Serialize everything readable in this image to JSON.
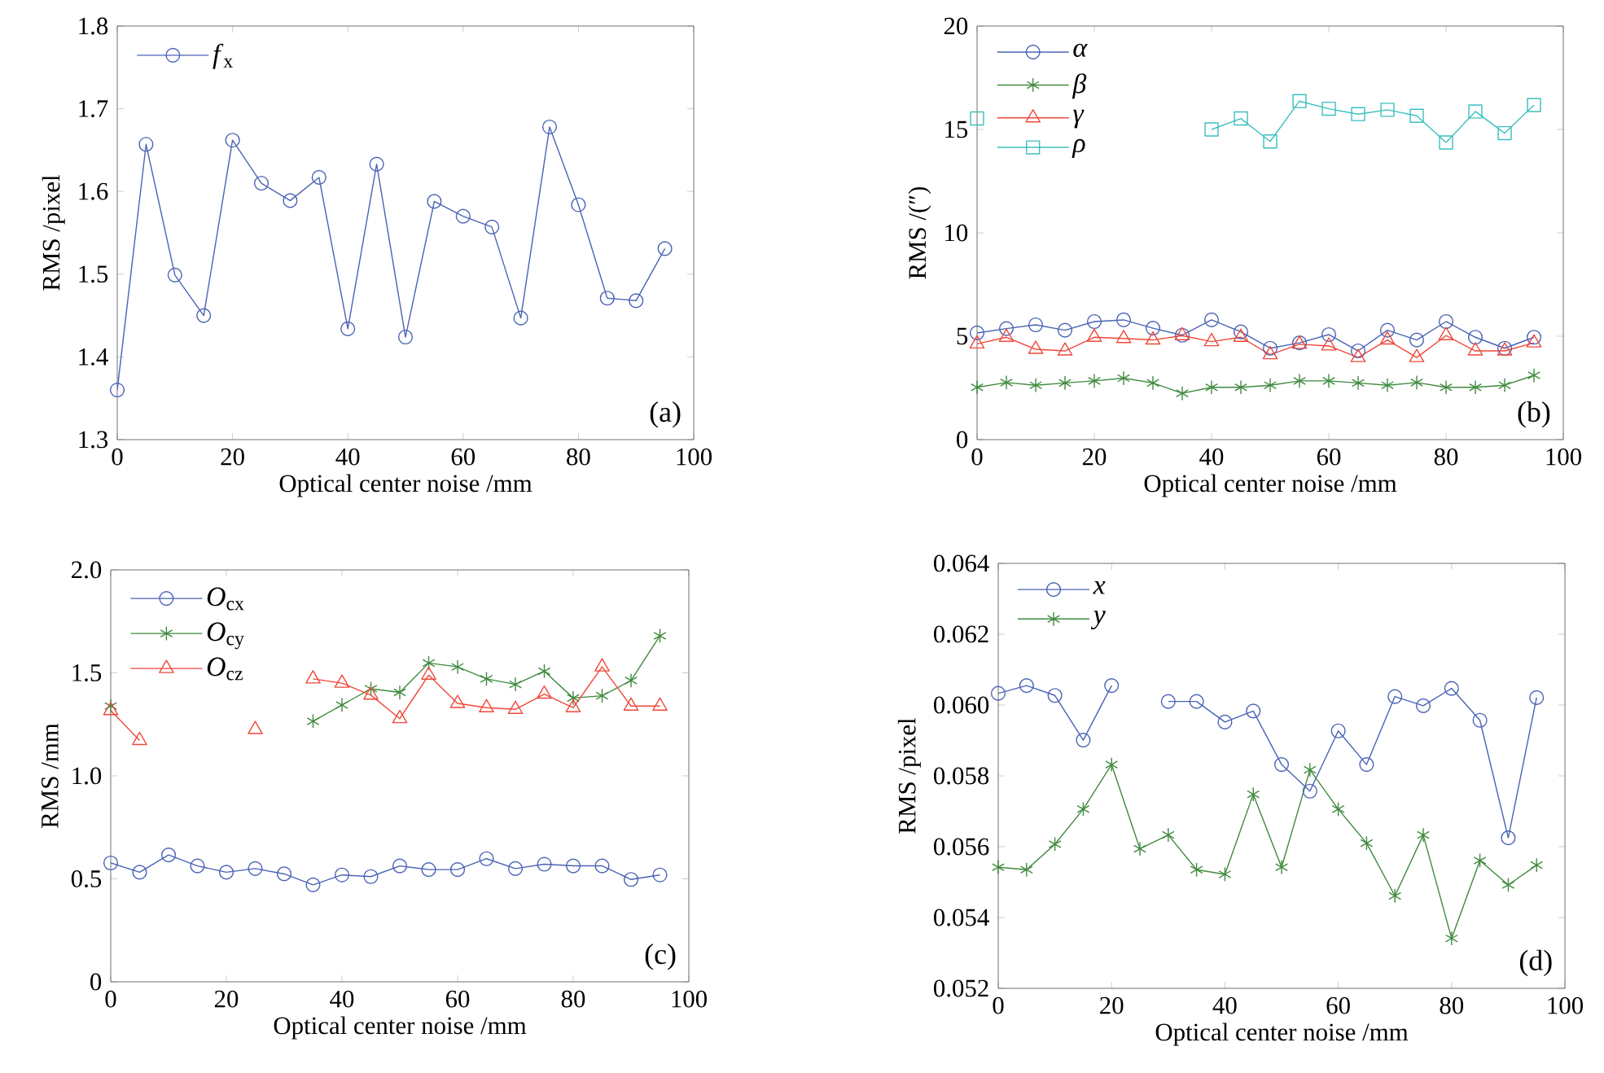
{
  "chart_data": [
    {
      "type": "line",
      "xlabel": "Optical center noise /mm",
      "ylabel": "RMS /pixel",
      "legend": "top left",
      "annotations": [
        "(a)"
      ],
      "x": [
        0,
        5,
        10,
        15,
        20,
        25,
        30,
        35,
        40,
        45,
        50,
        55,
        60,
        65,
        70,
        75,
        80,
        85,
        90,
        95
      ],
      "xlim": [
        0,
        100
      ],
      "xticks": [
        0,
        20,
        40,
        60,
        80,
        100
      ],
      "ylim": [
        1.3,
        1.8
      ],
      "yticks": [
        1.3,
        1.4,
        1.5,
        1.6,
        1.7,
        1.8
      ],
      "series": [
        {
          "name": "*f*$_{x}$",
          "color": "#4a63b5",
          "marker": "circle",
          "values": [
            1.36,
            1.657,
            1.499,
            1.45,
            1.662,
            1.61,
            1.589,
            1.617,
            1.434,
            1.633,
            1.424,
            1.588,
            1.57,
            1.557,
            1.447,
            1.678,
            1.584,
            1.471,
            1.468,
            1.531
          ]
        }
      ]
    },
    {
      "type": "line",
      "xlabel": "Optical center noise /mm",
      "ylabel": "RMS /(″)",
      "legend": "top left",
      "annotations": [
        "(b)"
      ],
      "x": [
        0,
        5,
        10,
        15,
        20,
        25,
        30,
        35,
        40,
        45,
        50,
        55,
        60,
        65,
        70,
        75,
        80,
        85,
        90,
        95
      ],
      "xlim": [
        0,
        100
      ],
      "xticks": [
        0,
        20,
        40,
        60,
        80,
        100
      ],
      "ylim": [
        0,
        20
      ],
      "yticks": [
        0,
        5,
        10,
        15,
        20
      ],
      "series": [
        {
          "name": "*α*",
          "color": "#4a63b5",
          "marker": "circle",
          "values": [
            5.16,
            5.37,
            5.55,
            5.29,
            5.71,
            5.79,
            5.39,
            5.05,
            5.79,
            5.21,
            4.42,
            4.68,
            5.08,
            4.29,
            5.29,
            4.82,
            5.71,
            4.95,
            4.42,
            4.95
          ]
        },
        {
          "name": "*β*",
          "color": "#3f8a3f",
          "marker": "cross",
          "values": [
            2.53,
            2.76,
            2.63,
            2.74,
            2.84,
            2.97,
            2.74,
            2.24,
            2.53,
            2.53,
            2.63,
            2.84,
            2.84,
            2.74,
            2.63,
            2.76,
            2.53,
            2.53,
            2.63,
            3.11
          ]
        },
        {
          "name": "*γ*",
          "color": "#f0483a",
          "marker": "triangle",
          "values": [
            4.63,
            4.95,
            4.37,
            4.29,
            4.95,
            4.89,
            4.82,
            5.03,
            4.74,
            4.95,
            4.11,
            4.61,
            4.53,
            3.97,
            4.82,
            3.97,
            5.03,
            4.29,
            4.29,
            4.68
          ]
        },
        {
          "name": "*ρ*",
          "color": "#3cbfbf",
          "marker": "square",
          "values": [
            15.53,
            null,
            null,
            null,
            null,
            null,
            null,
            null,
            15.0,
            15.53,
            14.42,
            16.37,
            16.0,
            15.74,
            15.95,
            15.66,
            14.37,
            15.87,
            14.82,
            16.18
          ]
        }
      ]
    },
    {
      "type": "line",
      "xlabel": "Optical center noise /mm",
      "ylabel": "RMS /mm",
      "legend": "top left",
      "annotations": [
        "(c)"
      ],
      "x": [
        0,
        5,
        10,
        15,
        20,
        25,
        30,
        35,
        40,
        45,
        50,
        55,
        60,
        65,
        70,
        75,
        80,
        85,
        90,
        95
      ],
      "xlim": [
        0,
        100
      ],
      "xticks": [
        0,
        20,
        40,
        60,
        80,
        100
      ],
      "ylim": [
        0,
        2
      ],
      "yticks": [
        0,
        {
          "value": 0.5,
          "label": "0.5"
        },
        {
          "value": 1,
          "label": "1.0"
        },
        {
          "value": 1.5,
          "label": "1.5"
        },
        {
          "value": 2,
          "label": "2.0"
        }
      ],
      "series": [
        {
          "name": "*O*$_{cx}$",
          "color": "#4a63b5",
          "marker": "circle",
          "values": [
            0.577,
            0.532,
            0.616,
            0.563,
            0.532,
            0.55,
            0.524,
            0.471,
            0.519,
            0.511,
            0.563,
            0.545,
            0.545,
            0.598,
            0.55,
            0.571,
            0.563,
            0.563,
            0.497,
            0.519
          ]
        },
        {
          "name": "*O*$_{cy}$",
          "color": "#3f8a3f",
          "marker": "cross",
          "values": [
            1.339,
            null,
            null,
            null,
            null,
            null,
            null,
            1.265,
            1.344,
            1.423,
            1.405,
            1.548,
            1.529,
            1.471,
            1.444,
            1.508,
            1.378,
            1.389,
            1.463,
            1.68
          ]
        },
        {
          "name": "*O*$_{cz}$",
          "color": "#f0483a",
          "marker": "triangle",
          "values": [
            1.317,
            1.172,
            null,
            null,
            null,
            1.225,
            null,
            1.471,
            1.45,
            1.392,
            1.278,
            1.489,
            1.352,
            1.331,
            1.323,
            1.397,
            1.331,
            1.529,
            1.339,
            1.339
          ]
        }
      ]
    },
    {
      "type": "line",
      "xlabel": "Optical center noise /mm",
      "ylabel": "RMS /pixel",
      "legend": "top left",
      "annotations": [
        "(d)"
      ],
      "x": [
        0,
        5,
        10,
        15,
        20,
        25,
        30,
        35,
        40,
        45,
        50,
        55,
        60,
        65,
        70,
        75,
        80,
        85,
        90,
        95
      ],
      "xlim": [
        0,
        100
      ],
      "xticks": [
        0,
        20,
        40,
        60,
        80,
        100
      ],
      "ylim": [
        0.052,
        0.064
      ],
      "yticks": [
        0.052,
        0.054,
        0.056,
        0.058,
        {
          "value": 0.06,
          "label": "0.060"
        },
        0.062,
        0.064
      ],
      "series": [
        {
          "name": "*x*",
          "color": "#4a63b5",
          "marker": "circle",
          "values": [
            0.06033,
            0.06055,
            0.06027,
            0.05901,
            0.06055,
            null,
            0.0601,
            0.0601,
            0.05952,
            0.05983,
            0.05832,
            0.05757,
            0.05927,
            0.05832,
            0.06024,
            0.05998,
            0.06047,
            0.05957,
            0.05625,
            0.06021
          ]
        },
        {
          "name": "*y*",
          "color": "#3f8a3f",
          "marker": "cross",
          "values": [
            0.05542,
            0.05535,
            0.05607,
            0.05706,
            0.05832,
            0.05594,
            0.05633,
            0.05535,
            0.05522,
            0.05748,
            0.05542,
            0.05817,
            0.05706,
            0.0561,
            0.05461,
            0.05633,
            0.05341,
            0.05561,
            0.05492,
            0.05548
          ]
        }
      ]
    }
  ]
}
